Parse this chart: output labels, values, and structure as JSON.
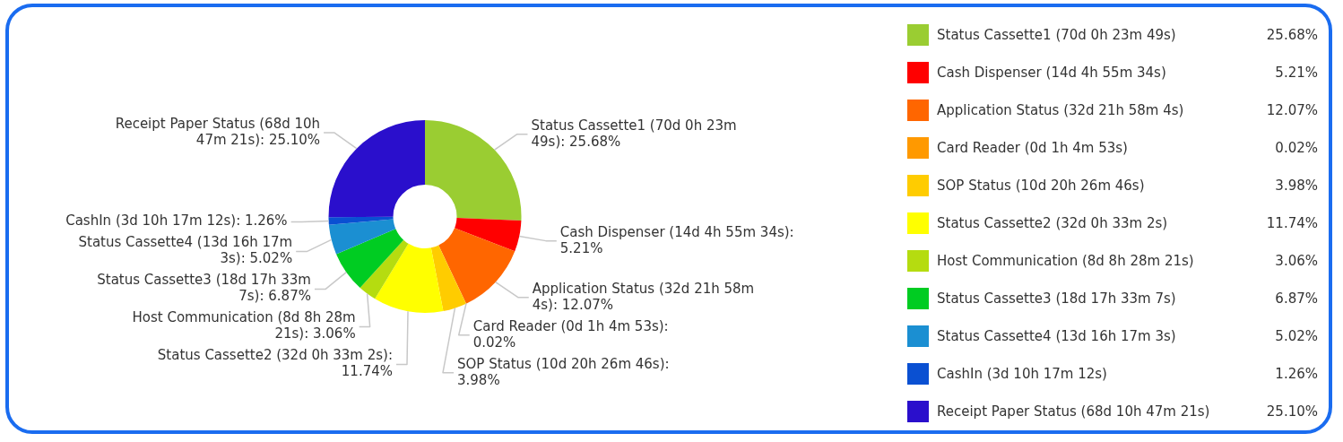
{
  "chart_data": {
    "type": "donut",
    "categories": [
      "Status Cassette1 (70d 0h 23m 49s)",
      "Cash Dispenser (14d 4h 55m 34s)",
      "Application Status (32d 21h 58m 4s)",
      "Card Reader (0d 1h 4m 53s)",
      "SOP Status (10d 20h 26m 46s)",
      "Status Cassette2 (32d 0h 33m 2s)",
      "Host Communication (8d 8h 28m 21s)",
      "Status Cassette3 (18d 17h 33m 7s)",
      "Status Cassette4 (13d 16h 17m 3s)",
      "CashIn (3d 10h 17m 12s)",
      "Receipt Paper Status (68d 10h 47m 21s)"
    ],
    "values": [
      25.68,
      5.21,
      12.07,
      0.02,
      3.98,
      11.74,
      3.06,
      6.87,
      5.02,
      1.26,
      25.1
    ],
    "value_labels": [
      "25.68%",
      "5.21%",
      "12.07%",
      "0.02%",
      "3.98%",
      "11.74%",
      "3.06%",
      "6.87%",
      "5.02%",
      "1.26%",
      "25.10%"
    ],
    "colors": [
      "#9acd32",
      "#ff0000",
      "#ff6600",
      "#ff9900",
      "#ffcc00",
      "#ffff00",
      "#b5dc10",
      "#00cc22",
      "#1b8fd2",
      "#0a50d2",
      "#2a0fcc"
    ],
    "legend": "right",
    "annotations": [
      "Status Cassette1 (70d 0h 23m 49s): 25.68%",
      "Cash Dispenser (14d 4h 55m 34s): 5.21%",
      "Application Status (32d 21h 58m 4s): 12.07%",
      "Card Reader (0d 1h 4m 53s): 0.02%",
      "SOP Status (10d 20h 26m 46s): 3.98%",
      "Status Cassette2 (32d 0h 33m 2s): 11.74%",
      "Host Communication (8d 8h 28m 21s): 3.06%",
      "Status Cassette3 (18d 17h 33m 7s): 6.87%",
      "Status Cassette4 (13d 16h 17m 3s): 5.02%",
      "CashIn (3d 10h 17m 12s): 1.26%",
      "Receipt Paper Status (68d 10h 47m 21s): 25.10%"
    ]
  }
}
